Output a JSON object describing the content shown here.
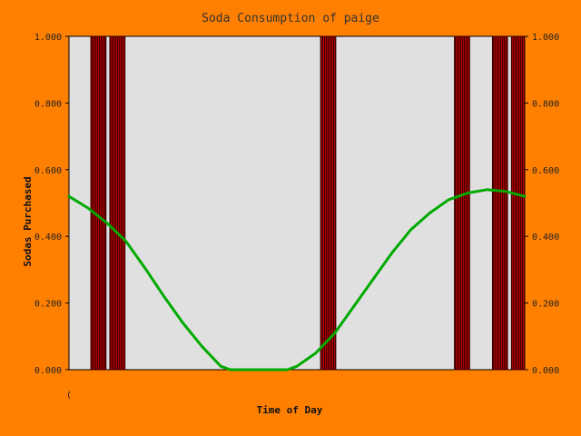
{
  "chart_data": {
    "type": "bar",
    "title": "Soda Consumption of paige",
    "xlabel": "Time of Day",
    "ylabel": "Sodas Purchased",
    "x_tick_label": "(",
    "xlim": [
      0,
      24
    ],
    "ylim": [
      0,
      1
    ],
    "y_ticks": [
      "0.000",
      "0.200",
      "0.400",
      "0.600",
      "0.800",
      "1.000"
    ],
    "grid": false,
    "bars": [
      {
        "start": 1.15,
        "end": 1.95,
        "value": 1.0
      },
      {
        "start": 2.15,
        "end": 2.95,
        "value": 1.0
      },
      {
        "start": 13.25,
        "end": 14.05,
        "value": 1.0
      },
      {
        "start": 20.3,
        "end": 21.1,
        "value": 1.0
      },
      {
        "start": 22.3,
        "end": 23.1,
        "value": 1.0
      },
      {
        "start": 23.3,
        "end": 24.0,
        "value": 1.0
      }
    ],
    "trend_line": {
      "x": [
        0,
        1,
        2,
        3,
        4,
        5,
        6,
        7,
        8,
        8.5,
        9,
        10,
        11,
        11.5,
        12,
        13,
        14,
        15,
        16,
        17,
        18,
        19,
        20,
        21,
        22,
        23,
        24
      ],
      "y": [
        0.52,
        0.485,
        0.44,
        0.385,
        0.305,
        0.22,
        0.14,
        0.07,
        0.01,
        0.0,
        0.0,
        0.0,
        0.0,
        0.0,
        0.01,
        0.05,
        0.11,
        0.19,
        0.27,
        0.35,
        0.42,
        0.47,
        0.51,
        0.53,
        0.54,
        0.535,
        0.52
      ]
    },
    "colors": {
      "background": "#ff8000",
      "plot_area": "#e0e0e0",
      "bar_fill": "#b80000",
      "bar_stripe": "#3a0000",
      "line": "#00aa00"
    }
  }
}
